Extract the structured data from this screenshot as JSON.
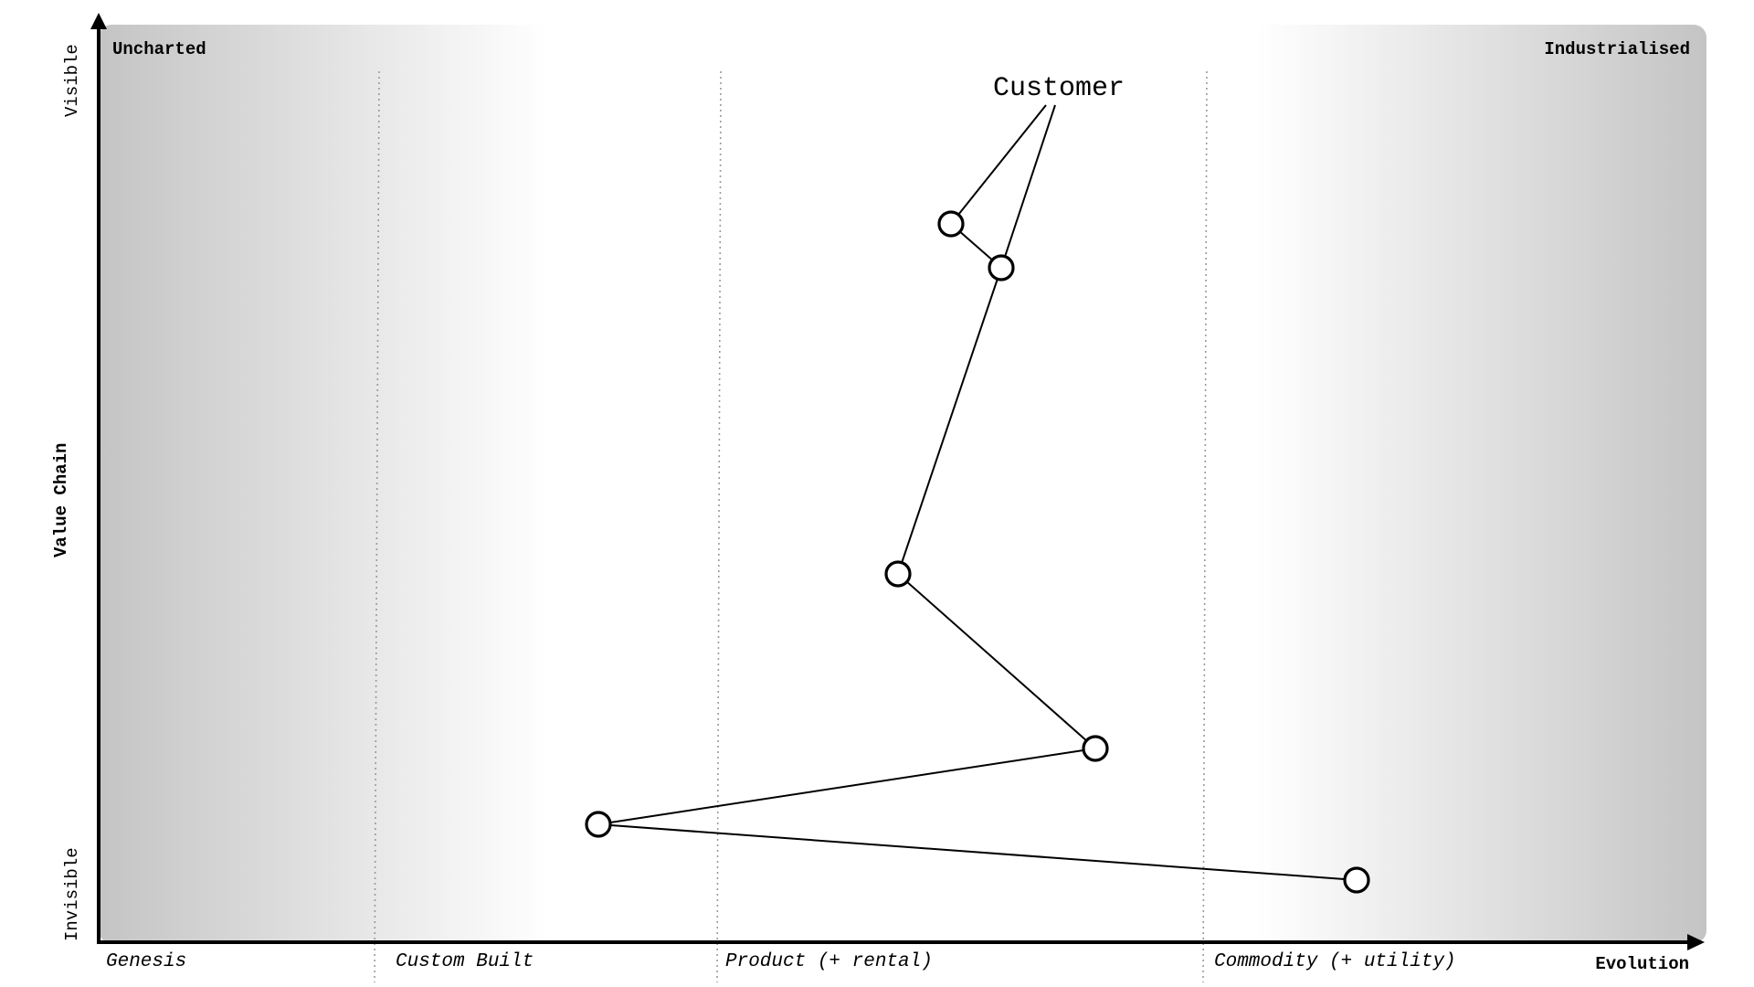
{
  "axes": {
    "y_top": "Visible",
    "y_middle": "Value Chain",
    "y_bottom": "Invisible",
    "x_end": "Evolution"
  },
  "corners": {
    "left": "Uncharted",
    "right": "Industrialised"
  },
  "stages": [
    "Genesis",
    "Custom Built",
    "Product (+ rental)",
    "Commodity (+ utility)"
  ],
  "anchor": {
    "label": "Customer"
  },
  "colors": {
    "background_gradient_dark": "#c4c4c4",
    "background_light": "#ffffff",
    "line": "#000000",
    "divider": "#9a9a9a"
  }
}
